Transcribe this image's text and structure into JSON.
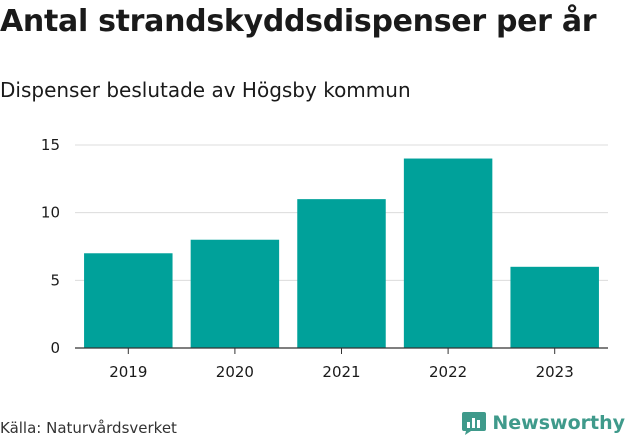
{
  "chart_data": {
    "type": "bar",
    "title": "Antal strandskyddsdispenser per år",
    "subtitle": "Dispenser beslutade av Högsby kommun",
    "categories": [
      "2019",
      "2020",
      "2021",
      "2022",
      "2023"
    ],
    "values": [
      7,
      8,
      11,
      14,
      6
    ],
    "yticks": [
      0,
      5,
      10,
      15
    ],
    "ylim": [
      0,
      15
    ],
    "xlabel": "",
    "ylabel": "",
    "grid": true,
    "bar_color": "#00a19a"
  },
  "footer": {
    "source": "Källa: Naturvårdsverket",
    "brand": "Newsworthy",
    "brand_color": "#3f9a8b"
  }
}
